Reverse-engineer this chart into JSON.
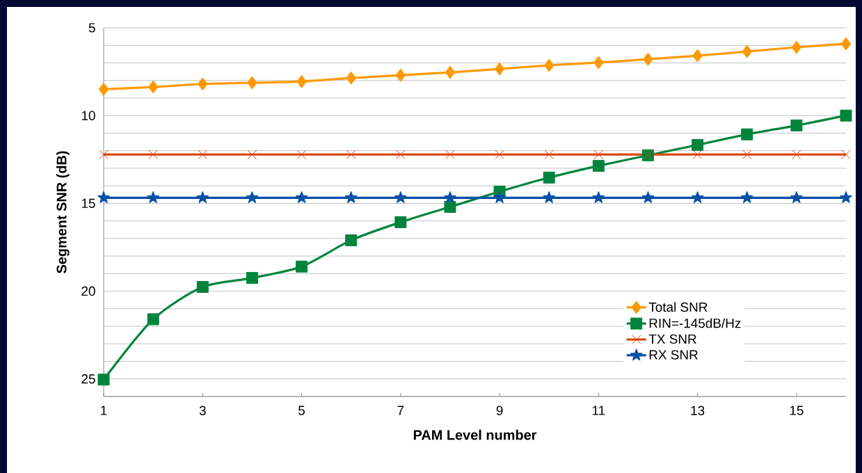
{
  "chart_data": {
    "type": "line",
    "xlabel": "PAM Level number",
    "ylabel": "Segment  SNR (dB)",
    "x": [
      1,
      2,
      3,
      4,
      5,
      6,
      7,
      8,
      9,
      10,
      11,
      12,
      13,
      14,
      15,
      16
    ],
    "series": [
      {
        "name": "Total SNR",
        "color": "#ff9900",
        "marker": "diamond",
        "values": [
          8.5,
          8.37,
          8.2,
          8.13,
          8.06,
          7.86,
          7.7,
          7.54,
          7.34,
          7.14,
          6.98,
          6.79,
          6.59,
          6.35,
          6.11,
          5.91
        ]
      },
      {
        "name": "RIN=-145dB/Hz",
        "color": "#00843d",
        "marker": "square",
        "values": [
          25.04,
          21.6,
          19.76,
          19.25,
          18.6,
          17.1,
          16.07,
          15.2,
          14.33,
          13.53,
          12.86,
          12.26,
          11.67,
          11.07,
          10.56,
          10.0
        ]
      },
      {
        "name": "TX SNR",
        "color": "#d9480f",
        "marker": "cross",
        "values": [
          12.22,
          12.22,
          12.22,
          12.22,
          12.22,
          12.22,
          12.22,
          12.22,
          12.22,
          12.22,
          12.22,
          12.22,
          12.22,
          12.22,
          12.22,
          12.22
        ]
      },
      {
        "name": "RX SNR",
        "color": "#0050a8",
        "marker": "star",
        "values": [
          14.68,
          14.68,
          14.68,
          14.68,
          14.68,
          14.68,
          14.68,
          14.68,
          14.68,
          14.68,
          14.68,
          14.68,
          14.68,
          14.68,
          14.68,
          14.68
        ]
      }
    ],
    "xlim": [
      1,
      16
    ],
    "xticks": [
      1,
      3,
      5,
      7,
      9,
      11,
      13,
      15
    ],
    "ylim": [
      26,
      5
    ],
    "yticks": [
      5,
      {
        "value": 6,
        "label": null
      },
      {
        "value": 7,
        "label": null
      },
      {
        "value": 8,
        "label": null
      },
      {
        "value": 9,
        "label": null
      },
      10,
      {
        "value": 11,
        "label": null
      },
      {
        "value": 12,
        "label": null
      },
      {
        "value": 13,
        "label": null
      },
      {
        "value": 14,
        "label": null
      },
      15,
      {
        "value": 16,
        "label": null
      },
      {
        "value": 17,
        "label": null
      },
      {
        "value": 18,
        "label": null
      },
      {
        "value": 19,
        "label": null
      },
      20,
      {
        "value": 21,
        "label": null
      },
      {
        "value": 22,
        "label": null
      },
      {
        "value": 23,
        "label": null
      },
      {
        "value": 24,
        "label": null
      },
      25,
      {
        "value": 26,
        "label": null
      }
    ],
    "grid": "y",
    "legend": "bottom right",
    "line_style": "solid"
  }
}
